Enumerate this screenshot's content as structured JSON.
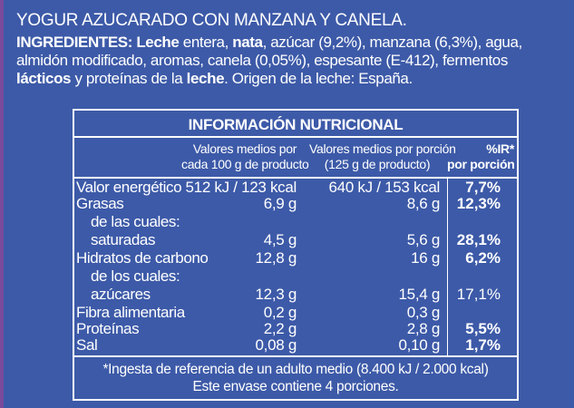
{
  "product_title": "YOGUR AZUCARADO CON MANZANA Y CANELA.",
  "ingredients": {
    "label": "INGREDIENTES:",
    "parts": [
      {
        "text": " ",
        "bold": false
      },
      {
        "text": "Leche",
        "bold": true
      },
      {
        "text": " entera, ",
        "bold": false
      },
      {
        "text": "nata",
        "bold": true
      },
      {
        "text": ", azúcar (9,2%), manzana (6,3%), agua, almidón modificado, aromas, canela (0,05%), espesante (E-412), fermentos ",
        "bold": false
      },
      {
        "text": "lácticos",
        "bold": true
      },
      {
        "text": " y proteínas de la ",
        "bold": false
      },
      {
        "text": "leche",
        "bold": true
      },
      {
        "text": ". Origen de la leche: España.",
        "bold": false
      }
    ]
  },
  "nutrition": {
    "title": "INFORMACIÓN NUTRICIONAL",
    "col_per100_line1": "Valores medios por",
    "col_per100_line2": "cada 100 g de producto",
    "col_portion_line1": "Valores medios por porción",
    "col_portion_line2": "(125 g de producto)",
    "col_ir_line1": "%IR*",
    "col_ir_line2": "por porción",
    "rows": [
      {
        "label": "Valor energético",
        "per100": "512 kJ / 123 kcal",
        "portion": "640 kJ / 153 kcal",
        "ir": "7,7%",
        "ir_bold": true
      },
      {
        "label": "Grasas",
        "per100": "6,9 g",
        "portion": "8,6 g",
        "ir": "12,3%",
        "ir_bold": true
      },
      {
        "label": "de las cuales:",
        "per100": "",
        "portion": "",
        "ir": "",
        "ir_bold": false
      },
      {
        "label": "saturadas",
        "per100": "4,5 g",
        "portion": "5,6 g",
        "ir": "28,1%",
        "ir_bold": true
      },
      {
        "label": "Hidratos de carbono",
        "per100": "12,8 g",
        "portion": "16 g",
        "ir": "6,2%",
        "ir_bold": true
      },
      {
        "label": "de los cuales:",
        "per100": "",
        "portion": "",
        "ir": "",
        "ir_bold": false
      },
      {
        "label": "azúcares",
        "per100": "12,3 g",
        "portion": "15,4 g",
        "ir": "17,1%",
        "ir_bold": false
      },
      {
        "label": "Fibra alimentaria",
        "per100": "0,2 g",
        "portion": "0,3 g",
        "ir": "",
        "ir_bold": false
      },
      {
        "label": "Proteínas",
        "per100": "2,2 g",
        "portion": "2,8 g",
        "ir": "5,5%",
        "ir_bold": true
      },
      {
        "label": "Sal",
        "per100": "0,08 g",
        "portion": "0,10 g",
        "ir": "1,7%",
        "ir_bold": true
      }
    ],
    "footnote": "*Ingesta de referencia de un adulto medio (8.400 kJ / 2.000 kcal)",
    "portions_note": "Este envase contiene 4 porciones."
  },
  "colors": {
    "background": "#3d5aa8",
    "text": "#ffffff",
    "edge": "#7a4a9c"
  }
}
